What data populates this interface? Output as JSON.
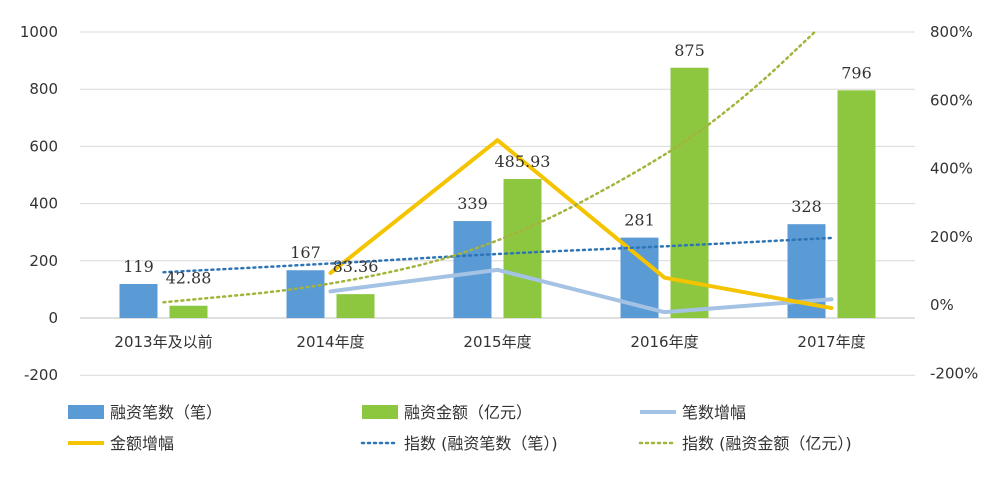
{
  "chart_data": {
    "type": "bar",
    "categories": [
      "2013年及以前",
      "2014年度",
      "2015年度",
      "2016年度",
      "2017年度"
    ],
    "ylim": [
      -200,
      1000
    ],
    "y_ticks": [
      "1000",
      "800",
      "600",
      "400",
      "200",
      "0",
      "-200"
    ],
    "y2lim": [
      -200,
      800
    ],
    "y2_ticks": [
      "800%",
      "600%",
      "400%",
      "200%",
      "0%",
      "-200%"
    ],
    "grid": true,
    "legend_position": "bottom",
    "series": [
      {
        "name": "融资笔数（笔）",
        "kind": "bar",
        "axis": "left",
        "color": "#5b9bd5",
        "values": [
          119,
          167,
          339,
          281,
          328
        ],
        "labels": [
          "119",
          "167",
          "339",
          "281",
          "328"
        ]
      },
      {
        "name": "融资金额（亿元）",
        "kind": "bar",
        "axis": "left",
        "color": "#8dc63f",
        "values": [
          42.88,
          83.36,
          485.93,
          875,
          796
        ],
        "labels": [
          "42.88",
          "83.36",
          "485.93",
          "875",
          "796"
        ]
      },
      {
        "name": "笔数增幅",
        "kind": "line",
        "axis": "right",
        "color": "#a4c2e4",
        "values": [
          null,
          40,
          103,
          -21,
          17
        ]
      },
      {
        "name": "金额增幅",
        "kind": "line",
        "axis": "right",
        "color": "#f5c400",
        "values": [
          null,
          94,
          483,
          80,
          -9
        ]
      },
      {
        "name": "指数 (融资笔数（笔）)",
        "kind": "trend",
        "axis": "left",
        "color": "#2e75b6",
        "x": [
          0,
          1,
          2,
          3,
          4
        ],
        "values": [
          160,
          190,
          225,
          250,
          280
        ]
      },
      {
        "name": "指数 (融资金额（亿元）)",
        "kind": "trend",
        "axis": "left",
        "color": "#a3b33b",
        "x": [
          0,
          1,
          2,
          3,
          3.5,
          3.9
        ],
        "values": [
          55,
          110,
          250,
          560,
          780,
          1000
        ]
      }
    ]
  }
}
